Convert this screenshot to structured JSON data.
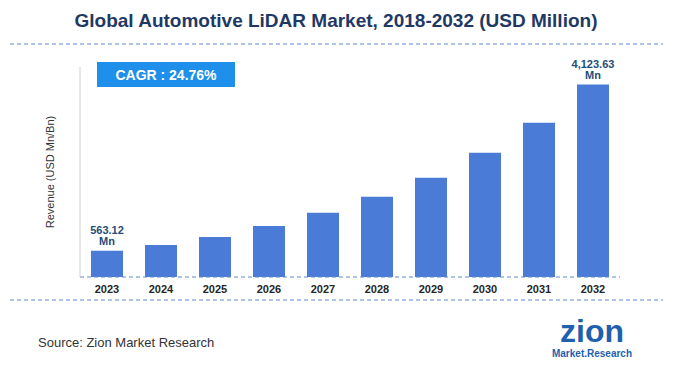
{
  "chart_data": {
    "type": "bar",
    "title": "Global Automotive LiDAR Market, 2018-2032 (USD Million)",
    "annotation": "CAGR : 24.76%",
    "y_label": "Revenue (USD Mn/Bn)",
    "source": "Source: Zion Market Research",
    "logo": [
      "zion",
      "Market.Research"
    ],
    "categories": [
      "2023",
      "2024",
      "2025",
      "2026",
      "2027",
      "2028",
      "2029",
      "2030",
      "2031",
      "2032"
    ],
    "values": [
      563.12,
      687,
      859,
      1095,
      1375,
      1718,
      2126,
      2663,
      3307,
      4123.63
    ],
    "value_labels": [
      "563.12 Mn",
      null,
      null,
      null,
      null,
      null,
      null,
      null,
      null,
      "4,123.63 Mn"
    ],
    "data_labels": true,
    "color": "#4a7bd6",
    "ylim": [
      0,
      4500
    ],
    "yticks": [],
    "tick_labels": "x",
    "grid": false
  }
}
